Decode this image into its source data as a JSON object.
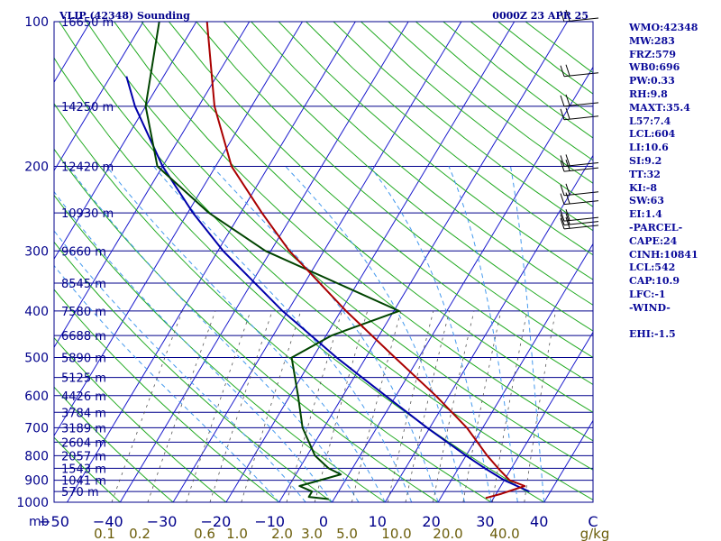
{
  "header": {
    "station": "VLIP (42348) Sounding",
    "time": "0000Z 23 APR 25"
  },
  "stats": [
    "WMO:42348",
    "MW:283",
    "FRZ:579",
    "WB0:696",
    "PW:0.33",
    "RH:9.8",
    "MAXT:35.4",
    "L57:7.4",
    "LCL:604",
    "LI:10.6",
    "SI:9.2",
    "TT:32",
    "KI:-8",
    "SW:63",
    "EI:1.4",
    "-PARCEL-",
    "CAPE:24",
    "CINH:10841",
    "LCL:542",
    "CAP:10.9",
    "LFC:-1",
    "-WIND-",
    "",
    "EHI:-1.5"
  ],
  "colors": {
    "temperature": "#aa0000",
    "dewpoint": "#004400",
    "parcel": "#0000aa",
    "isobar": "#00008b",
    "isotherm": "#1a1acc",
    "dry_adiabat": "#22aa22",
    "moist_adiabat": "#4499ee",
    "mixing_ratio": "#555555",
    "label": "#00008b",
    "mixing_label": "#6b5d0a",
    "wind_barb": "#000000"
  },
  "chart_data": {
    "type": "skew-t",
    "ylabel": "mb",
    "y_axis": "log-pressure",
    "pressure_range_mb": [
      1000,
      100
    ],
    "temperature_range_c": [
      -50,
      50
    ],
    "pressure_ticks": [
      "100",
      "200",
      "300",
      "400",
      "500",
      "600",
      "700",
      "800",
      "900",
      "1000"
    ],
    "temperature_ticks": [
      "−50",
      "−40",
      "−30",
      "−20",
      "−10",
      "0",
      "10",
      "20",
      "30",
      "40"
    ],
    "temperature_tick_last": "C",
    "mixing_ratio_ticks": [
      "0.1",
      "0.2",
      "0.6",
      "1.0",
      "2.0",
      "3.0",
      "5.0",
      "10.0",
      "20.0",
      "40.0"
    ],
    "mixing_ratio_unit": "g/kg",
    "height_labels": [
      {
        "p": 100,
        "label": "16650 m"
      },
      {
        "p": 150,
        "label": "14250 m"
      },
      {
        "p": 200,
        "label": "12420 m"
      },
      {
        "p": 250,
        "label": "10930 m"
      },
      {
        "p": 300,
        "label": "9660 m"
      },
      {
        "p": 350,
        "label": "8545 m"
      },
      {
        "p": 400,
        "label": "7580 m"
      },
      {
        "p": 450,
        "label": "6688 m"
      },
      {
        "p": 500,
        "label": "5890 m"
      },
      {
        "p": 550,
        "label": "5125 m"
      },
      {
        "p": 600,
        "label": "4426 m"
      },
      {
        "p": 650,
        "label": "3784 m"
      },
      {
        "p": 700,
        "label": "3189 m"
      },
      {
        "p": 750,
        "label": "2604 m"
      },
      {
        "p": 800,
        "label": "2057 m"
      },
      {
        "p": 850,
        "label": "1543 m"
      },
      {
        "p": 900,
        "label": "1041 m"
      },
      {
        "p": 950,
        "label": "570 m"
      }
    ],
    "temperature_profile": [
      {
        "p": 980,
        "t": 28.5
      },
      {
        "p": 960,
        "t": 31.0
      },
      {
        "p": 925,
        "t": 34.5
      },
      {
        "p": 900,
        "t": 31.0
      },
      {
        "p": 850,
        "t": 27.5
      },
      {
        "p": 800,
        "t": 24.0
      },
      {
        "p": 700,
        "t": 17.0
      },
      {
        "p": 600,
        "t": 7.5
      },
      {
        "p": 500,
        "t": -4.5
      },
      {
        "p": 400,
        "t": -19.0
      },
      {
        "p": 300,
        "t": -36.5
      },
      {
        "p": 250,
        "t": -46.0
      },
      {
        "p": 200,
        "t": -57.0
      },
      {
        "p": 150,
        "t": -67.0
      },
      {
        "p": 100,
        "t": -78.0
      }
    ],
    "dewpoint_profile": [
      {
        "p": 985,
        "t": -1.0
      },
      {
        "p": 975,
        "t": -5.0
      },
      {
        "p": 950,
        "t": -5.0
      },
      {
        "p": 925,
        "t": -8.0
      },
      {
        "p": 875,
        "t": -1.5
      },
      {
        "p": 850,
        "t": -4.5
      },
      {
        "p": 800,
        "t": -8.5
      },
      {
        "p": 700,
        "t": -14.0
      },
      {
        "p": 600,
        "t": -18.5
      },
      {
        "p": 500,
        "t": -24.0
      },
      {
        "p": 450,
        "t": -19.0
      },
      {
        "p": 400,
        "t": -9.0
      },
      {
        "p": 300,
        "t": -41.0
      },
      {
        "p": 250,
        "t": -56.0
      },
      {
        "p": 200,
        "t": -71.0
      },
      {
        "p": 150,
        "t": -80.0
      },
      {
        "p": 100,
        "t": -87.0
      }
    ],
    "parcel_profile": [
      {
        "p": 950,
        "t": 36.0
      },
      {
        "p": 900,
        "t": 30.0
      },
      {
        "p": 850,
        "t": 25.0
      },
      {
        "p": 800,
        "t": 20.0
      },
      {
        "p": 700,
        "t": 9.5
      },
      {
        "p": 600,
        "t": -2.0
      },
      {
        "p": 550,
        "t": -8.5
      },
      {
        "p": 500,
        "t": -15.5
      },
      {
        "p": 400,
        "t": -31.0
      },
      {
        "p": 300,
        "t": -49.0
      },
      {
        "p": 250,
        "t": -59.0
      },
      {
        "p": 200,
        "t": -70.0
      },
      {
        "p": 150,
        "t": -82.0
      },
      {
        "p": 130,
        "t": -87.0
      }
    ],
    "wind_barb_levels_mb": [
      100,
      130,
      150,
      160,
      200,
      205,
      230,
      240,
      260,
      265,
      270
    ]
  }
}
